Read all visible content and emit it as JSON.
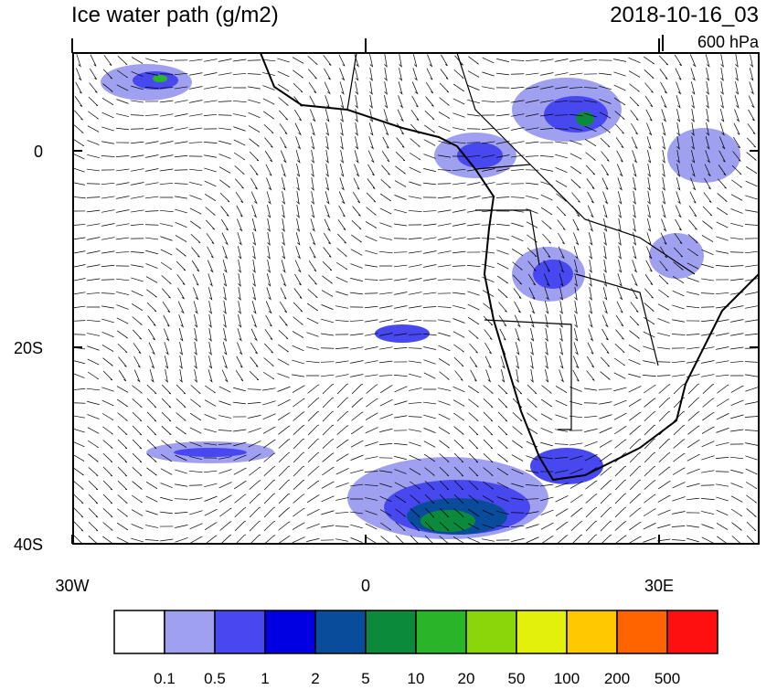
{
  "header": {
    "title": "Ice water path (g/m2)",
    "timestamp": "2018-10-16_03",
    "level": "600 hPa"
  },
  "map": {
    "lat_ticks": [
      {
        "value": 0,
        "label": "0"
      },
      {
        "value": -20,
        "label": "20S"
      },
      {
        "value": -40,
        "label": "40S"
      }
    ],
    "lon_ticks": [
      {
        "value": -30,
        "label": "30W"
      },
      {
        "value": 0,
        "label": "0"
      },
      {
        "value": 30,
        "label": "30E"
      }
    ]
  },
  "colorbar": {
    "colors": [
      "#ffffff",
      "#a0a0f0",
      "#4848f0",
      "#0000e0",
      "#0a4c9c",
      "#0a8a3a",
      "#2ab42a",
      "#8ad60a",
      "#e2f00a",
      "#ffc800",
      "#ff6400",
      "#ff1010"
    ],
    "labels": [
      0.1,
      0.5,
      1,
      2,
      5,
      10,
      20,
      50,
      100,
      200,
      500
    ]
  }
}
